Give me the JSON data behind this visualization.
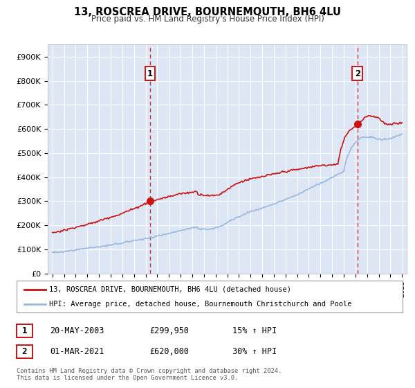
{
  "title": "13, ROSCREA DRIVE, BOURNEMOUTH, BH6 4LU",
  "subtitle": "Price paid vs. HM Land Registry's House Price Index (HPI)",
  "bg_color": "#ffffff",
  "plot_bg_color": "#dce6f5",
  "grid_color": "#ffffff",
  "sale1_date": 2003.38,
  "sale1_price": 299950,
  "sale1_label": "1",
  "sale2_date": 2021.17,
  "sale2_price": 620000,
  "sale2_label": "2",
  "hpi_line_color": "#99b8e0",
  "price_line_color": "#cc1111",
  "legend_label_price": "13, ROSCREA DRIVE, BOURNEMOUTH, BH6 4LU (detached house)",
  "legend_label_hpi": "HPI: Average price, detached house, Bournemouth Christchurch and Poole",
  "table_row1": [
    "1",
    "20-MAY-2003",
    "£299,950",
    "15% ↑ HPI"
  ],
  "table_row2": [
    "2",
    "01-MAR-2021",
    "£620,000",
    "30% ↑ HPI"
  ],
  "footer": "Contains HM Land Registry data © Crown copyright and database right 2024.\nThis data is licensed under the Open Government Licence v3.0.",
  "ylim": [
    0,
    950000
  ],
  "xlim_start": 1994.6,
  "xlim_end": 2025.4,
  "yticks": [
    0,
    100000,
    200000,
    300000,
    400000,
    500000,
    600000,
    700000,
    800000,
    900000
  ],
  "ytick_labels": [
    "£0",
    "£100K",
    "£200K",
    "£300K",
    "£400K",
    "£500K",
    "£600K",
    "£700K",
    "£800K",
    "£900K"
  ]
}
